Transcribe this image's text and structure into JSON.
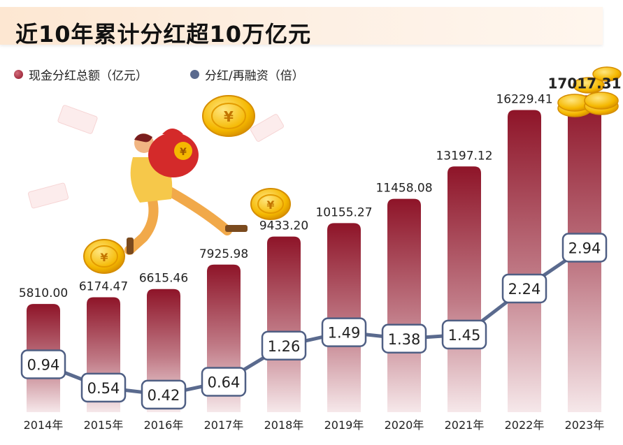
{
  "title": "近10年累计分红超10万亿元",
  "colors": {
    "bar_top": "#8e1428",
    "bar_bottom": "#f4e3e6",
    "line": "#5a6a8e",
    "box_border": "#4f5f84",
    "title_bg": "#fde7d2"
  },
  "chart_data": {
    "type": "bar",
    "categories": [
      "2014年",
      "2015年",
      "2016年",
      "2017年",
      "2018年",
      "2019年",
      "2020年",
      "2021年",
      "2022年",
      "2023年"
    ],
    "series": [
      {
        "name": "现金分红总额（亿元）",
        "type": "bar",
        "values": [
          5810.0,
          6174.47,
          6615.46,
          7925.98,
          9433.2,
          10155.27,
          11458.08,
          13197.12,
          16229.41,
          17017.31
        ],
        "labels": [
          "5810.00",
          "6174.47",
          "6615.46",
          "7925.98",
          "9433.20",
          "10155.27",
          "11458.08",
          "13197.12",
          "16229.41",
          "17017.31"
        ]
      },
      {
        "name": "分红/再融资（倍）",
        "type": "line",
        "values": [
          0.94,
          0.54,
          0.42,
          0.64,
          1.26,
          1.49,
          1.38,
          1.45,
          2.24,
          2.94
        ],
        "labels": [
          "0.94",
          "0.54",
          "0.42",
          "0.64",
          "1.26",
          "1.49",
          "1.38",
          "1.45",
          "2.24",
          "2.94"
        ]
      }
    ]
  }
}
